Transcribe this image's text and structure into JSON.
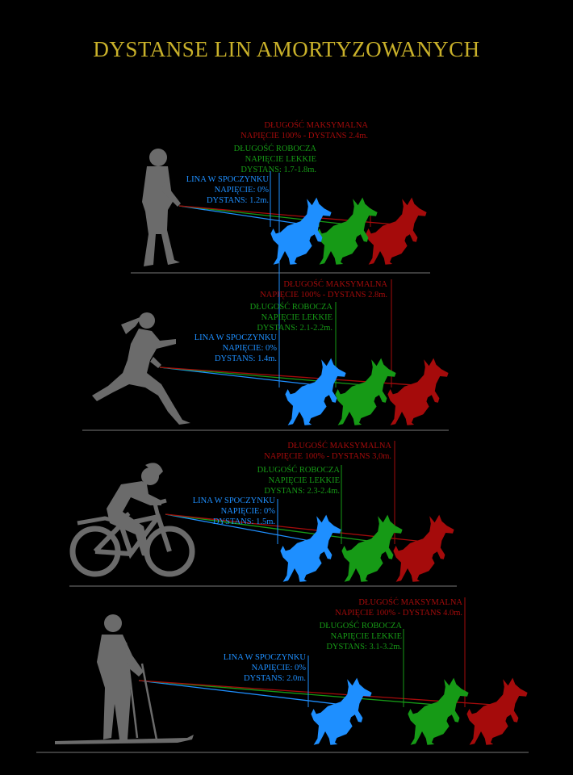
{
  "title": "DYSTANSE LIN AMORTYZOWANYCH",
  "colors": {
    "title": "#c9b12a",
    "blue": "#1e8fff",
    "green": "#169a16",
    "red": "#a50b0b",
    "figure": "#6b6b6b",
    "line": "#777777"
  },
  "panels": [
    {
      "activity": "walking person",
      "max": {
        "l1": "DŁUGOŚĆ MAKSYMALNA",
        "l2": "NAPIĘCIE 100% - DYSTANS 2.4m."
      },
      "work": {
        "l1": "DŁUGOŚĆ ROBOCZA",
        "l2": "NAPIĘCIE LEKKIE",
        "l3": "DYSTANS: 1.7-1.8m."
      },
      "rest": {
        "l1": "LINA W SPOCZYNKU",
        "l2": "NAPIĘCIE: 0%",
        "l3": "DYSTANS: 1.2m."
      }
    },
    {
      "activity": "running woman",
      "max": {
        "l1": "DŁUGOŚĆ MAKSYMALNA",
        "l2": "NAPIĘCIE 100% - DYSTANS 2.8m."
      },
      "work": {
        "l1": "DŁUGOŚĆ ROBOCZA",
        "l2": "NAPIĘCIE LEKKIE",
        "l3": "DYSTANS: 2.1-2.2m."
      },
      "rest": {
        "l1": "LINA W SPOCZYNKU",
        "l2": "NAPIĘCIE: 0%",
        "l3": "DYSTANS: 1.4m."
      }
    },
    {
      "activity": "cyclist",
      "max": {
        "l1": "DŁUGOŚĆ MAKSYMALNA",
        "l2": "NAPIĘCIE 100% - DYSTANS 3,0m."
      },
      "work": {
        "l1": "DŁUGOŚĆ ROBOCZA",
        "l2": "NAPIĘCIE LEKKIE",
        "l3": "DYSTANS: 2.3-2.4m."
      },
      "rest": {
        "l1": "LINA W SPOCZYNKU",
        "l2": "NAPIĘCIE: 0%",
        "l3": "DYSTANS: 1.5m."
      }
    },
    {
      "activity": "skier",
      "max": {
        "l1": "DŁUGOŚĆ MAKSYMALNA",
        "l2": "NAPIĘCIE 100% - DYSTANS 4.0m."
      },
      "work": {
        "l1": "DŁUGOŚĆ ROBOCZA",
        "l2": "NAPIĘCIE LEKKIE",
        "l3": "DYSTANS: 3.1-3.2m."
      },
      "rest": {
        "l1": "LINA W SPOCZYNKU",
        "l2": "NAPIĘCIE: 0%",
        "l3": "DYSTANS: 2.0m."
      }
    }
  ]
}
